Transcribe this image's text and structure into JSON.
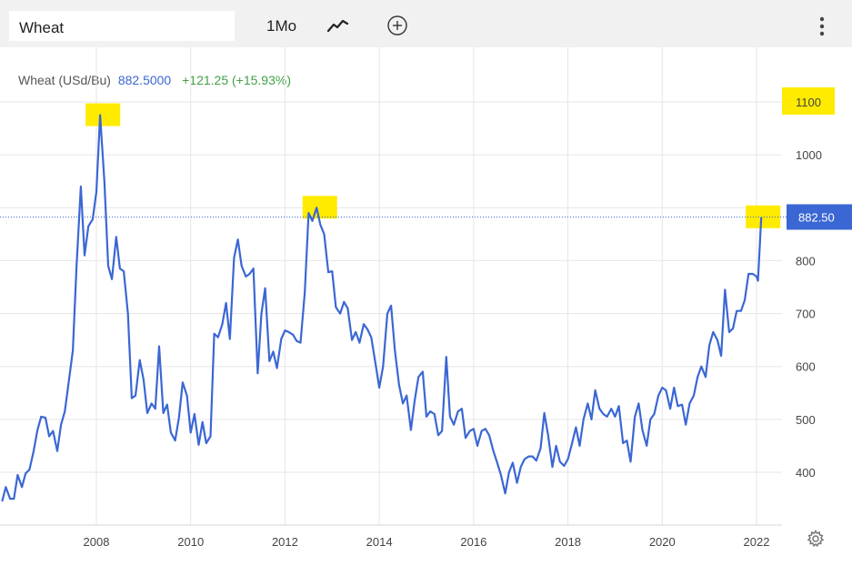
{
  "toolbar": {
    "symbol": "Wheat",
    "period": "1Mo",
    "chart_type_icon": "line-chart-icon",
    "add_icon": "plus-circle-icon",
    "more_icon": "vertical-dots-icon"
  },
  "legend": {
    "name": "Wheat (USd/Bu)",
    "value": "882.5000",
    "change": "+121.25 (+15.93%)"
  },
  "settings_icon": "gear-icon",
  "colors": {
    "line": "#3b67d4",
    "grid": "#e6e6e6",
    "highlight": "#ffeb00",
    "change_positive": "#43a047"
  },
  "chart_data": {
    "type": "line",
    "title": "Wheat (USd/Bu)",
    "xlabel": "",
    "ylabel": "",
    "xlim": [
      2006.0,
      2022.5
    ],
    "ylim": [
      300,
      1150
    ],
    "y_ticks": [
      400,
      500,
      600,
      700,
      800,
      900,
      1000,
      1100
    ],
    "y_tick_labels": [
      "400",
      "500",
      "600",
      "700",
      "800",
      "900",
      "1000",
      "1100"
    ],
    "x_ticks": [
      2008,
      2010,
      2012,
      2014,
      2016,
      2018,
      2020,
      2022
    ],
    "x_tick_labels": [
      "2008",
      "2010",
      "2012",
      "2014",
      "2016",
      "2018",
      "2020",
      "2022"
    ],
    "last_price_label": "882.50",
    "last_price": 882.5,
    "grid": true,
    "highlighted_y_labels": [
      "1100"
    ],
    "highlighted_points": [
      [
        2008.1,
        1075
      ],
      [
        2012.7,
        900
      ],
      [
        2022.1,
        882
      ]
    ],
    "series": [
      {
        "name": "Wheat (USd/Bu)",
        "points": [
          [
            2006.0,
            345
          ],
          [
            2006.08,
            372
          ],
          [
            2006.17,
            350
          ],
          [
            2006.25,
            350
          ],
          [
            2006.33,
            395
          ],
          [
            2006.42,
            372
          ],
          [
            2006.5,
            398
          ],
          [
            2006.58,
            405
          ],
          [
            2006.67,
            440
          ],
          [
            2006.75,
            480
          ],
          [
            2006.83,
            505
          ],
          [
            2006.92,
            503
          ],
          [
            2007.0,
            468
          ],
          [
            2007.08,
            478
          ],
          [
            2007.17,
            440
          ],
          [
            2007.25,
            490
          ],
          [
            2007.33,
            515
          ],
          [
            2007.42,
            575
          ],
          [
            2007.5,
            630
          ],
          [
            2007.58,
            790
          ],
          [
            2007.67,
            940
          ],
          [
            2007.75,
            810
          ],
          [
            2007.83,
            865
          ],
          [
            2007.92,
            878
          ],
          [
            2008.0,
            930
          ],
          [
            2008.08,
            1075
          ],
          [
            2008.17,
            950
          ],
          [
            2008.25,
            790
          ],
          [
            2008.33,
            765
          ],
          [
            2008.42,
            845
          ],
          [
            2008.5,
            785
          ],
          [
            2008.58,
            780
          ],
          [
            2008.67,
            700
          ],
          [
            2008.75,
            540
          ],
          [
            2008.83,
            545
          ],
          [
            2008.92,
            612
          ],
          [
            2009.0,
            575
          ],
          [
            2009.08,
            512
          ],
          [
            2009.17,
            530
          ],
          [
            2009.25,
            520
          ],
          [
            2009.33,
            638
          ],
          [
            2009.42,
            512
          ],
          [
            2009.5,
            528
          ],
          [
            2009.58,
            475
          ],
          [
            2009.67,
            460
          ],
          [
            2009.75,
            503
          ],
          [
            2009.83,
            570
          ],
          [
            2009.92,
            545
          ],
          [
            2010.0,
            475
          ],
          [
            2010.08,
            510
          ],
          [
            2010.17,
            452
          ],
          [
            2010.25,
            495
          ],
          [
            2010.33,
            455
          ],
          [
            2010.42,
            468
          ],
          [
            2010.5,
            662
          ],
          [
            2010.58,
            655
          ],
          [
            2010.67,
            680
          ],
          [
            2010.75,
            720
          ],
          [
            2010.83,
            652
          ],
          [
            2010.92,
            805
          ],
          [
            2011.0,
            840
          ],
          [
            2011.08,
            790
          ],
          [
            2011.17,
            770
          ],
          [
            2011.25,
            775
          ],
          [
            2011.33,
            785
          ],
          [
            2011.42,
            587
          ],
          [
            2011.5,
            700
          ],
          [
            2011.58,
            748
          ],
          [
            2011.67,
            610
          ],
          [
            2011.75,
            628
          ],
          [
            2011.83,
            597
          ],
          [
            2011.92,
            652
          ],
          [
            2012.0,
            668
          ],
          [
            2012.08,
            665
          ],
          [
            2012.17,
            660
          ],
          [
            2012.25,
            648
          ],
          [
            2012.33,
            645
          ],
          [
            2012.42,
            740
          ],
          [
            2012.5,
            890
          ],
          [
            2012.58,
            875
          ],
          [
            2012.67,
            900
          ],
          [
            2012.75,
            868
          ],
          [
            2012.83,
            850
          ],
          [
            2012.92,
            778
          ],
          [
            2013.0,
            780
          ],
          [
            2013.08,
            712
          ],
          [
            2013.17,
            700
          ],
          [
            2013.25,
            722
          ],
          [
            2013.33,
            710
          ],
          [
            2013.42,
            650
          ],
          [
            2013.5,
            665
          ],
          [
            2013.58,
            645
          ],
          [
            2013.67,
            680
          ],
          [
            2013.75,
            670
          ],
          [
            2013.83,
            655
          ],
          [
            2013.92,
            605
          ],
          [
            2014.0,
            560
          ],
          [
            2014.08,
            600
          ],
          [
            2014.17,
            700
          ],
          [
            2014.25,
            715
          ],
          [
            2014.33,
            630
          ],
          [
            2014.42,
            565
          ],
          [
            2014.5,
            530
          ],
          [
            2014.58,
            545
          ],
          [
            2014.67,
            480
          ],
          [
            2014.75,
            535
          ],
          [
            2014.83,
            580
          ],
          [
            2014.92,
            590
          ],
          [
            2015.0,
            505
          ],
          [
            2015.08,
            515
          ],
          [
            2015.17,
            510
          ],
          [
            2015.25,
            470
          ],
          [
            2015.33,
            478
          ],
          [
            2015.42,
            618
          ],
          [
            2015.5,
            505
          ],
          [
            2015.58,
            490
          ],
          [
            2015.67,
            515
          ],
          [
            2015.75,
            520
          ],
          [
            2015.83,
            465
          ],
          [
            2015.92,
            478
          ],
          [
            2016.0,
            482
          ],
          [
            2016.08,
            450
          ],
          [
            2016.17,
            478
          ],
          [
            2016.25,
            482
          ],
          [
            2016.33,
            470
          ],
          [
            2016.42,
            440
          ],
          [
            2016.5,
            418
          ],
          [
            2016.58,
            395
          ],
          [
            2016.67,
            360
          ],
          [
            2016.75,
            400
          ],
          [
            2016.83,
            418
          ],
          [
            2016.92,
            380
          ],
          [
            2017.0,
            410
          ],
          [
            2017.08,
            425
          ],
          [
            2017.17,
            430
          ],
          [
            2017.25,
            430
          ],
          [
            2017.33,
            422
          ],
          [
            2017.42,
            445
          ],
          [
            2017.5,
            512
          ],
          [
            2017.58,
            470
          ],
          [
            2017.67,
            410
          ],
          [
            2017.75,
            450
          ],
          [
            2017.83,
            420
          ],
          [
            2017.92,
            412
          ],
          [
            2018.0,
            425
          ],
          [
            2018.08,
            452
          ],
          [
            2018.17,
            485
          ],
          [
            2018.25,
            450
          ],
          [
            2018.33,
            500
          ],
          [
            2018.42,
            530
          ],
          [
            2018.5,
            500
          ],
          [
            2018.58,
            555
          ],
          [
            2018.67,
            520
          ],
          [
            2018.75,
            510
          ],
          [
            2018.83,
            505
          ],
          [
            2018.92,
            520
          ],
          [
            2019.0,
            505
          ],
          [
            2019.08,
            525
          ],
          [
            2019.17,
            455
          ],
          [
            2019.25,
            460
          ],
          [
            2019.33,
            420
          ],
          [
            2019.42,
            505
          ],
          [
            2019.5,
            530
          ],
          [
            2019.58,
            480
          ],
          [
            2019.67,
            450
          ],
          [
            2019.75,
            500
          ],
          [
            2019.83,
            510
          ],
          [
            2019.92,
            545
          ],
          [
            2020.0,
            560
          ],
          [
            2020.08,
            555
          ],
          [
            2020.17,
            520
          ],
          [
            2020.25,
            560
          ],
          [
            2020.33,
            525
          ],
          [
            2020.42,
            528
          ],
          [
            2020.5,
            490
          ],
          [
            2020.58,
            530
          ],
          [
            2020.67,
            545
          ],
          [
            2020.75,
            580
          ],
          [
            2020.83,
            600
          ],
          [
            2020.92,
            580
          ],
          [
            2021.0,
            640
          ],
          [
            2021.08,
            665
          ],
          [
            2021.17,
            650
          ],
          [
            2021.25,
            620
          ],
          [
            2021.33,
            745
          ],
          [
            2021.42,
            665
          ],
          [
            2021.5,
            672
          ],
          [
            2021.58,
            705
          ],
          [
            2021.67,
            705
          ],
          [
            2021.75,
            725
          ],
          [
            2021.83,
            775
          ],
          [
            2021.92,
            775
          ],
          [
            2022.0,
            770
          ],
          [
            2022.03,
            762
          ],
          [
            2022.1,
            882
          ]
        ]
      }
    ]
  }
}
